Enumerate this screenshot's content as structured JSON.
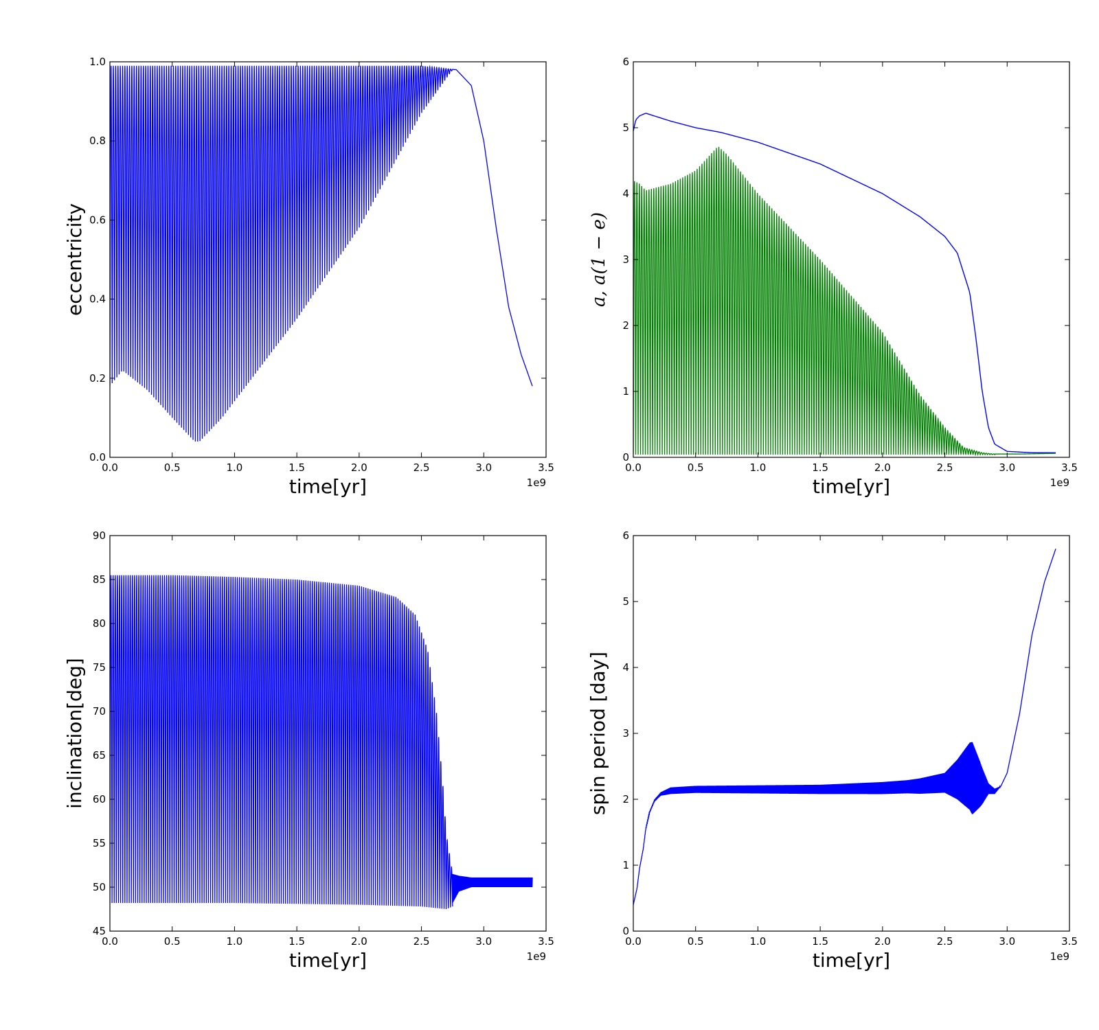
{
  "chart_data": [
    {
      "type": "line",
      "xlabel": "time[yr]",
      "ylabel": "eccentricity",
      "x_offset_label": "1e9",
      "xlim": [
        0.0,
        3.5
      ],
      "ylim": [
        0.0,
        1.0
      ],
      "xticks": [
        "0.0",
        "0.5",
        "1.0",
        "1.5",
        "2.0",
        "2.5",
        "3.0",
        "3.5"
      ],
      "yticks": [
        "0.0",
        "0.2",
        "0.4",
        "0.6",
        "0.8",
        "1.0"
      ],
      "grid": false,
      "series": [
        {
          "color": "#0000ff",
          "style": "oscillating",
          "max_points": [
            [
              0.0,
              0.99
            ],
            [
              2.5,
              0.99
            ],
            [
              2.78,
              0.98
            ],
            [
              2.95,
              0.9
            ],
            [
              3.05,
              0.72
            ],
            [
              3.15,
              0.5
            ],
            [
              3.25,
              0.33
            ],
            [
              3.39,
              0.18
            ]
          ],
          "min_points": [
            [
              0.0,
              0.18
            ],
            [
              0.1,
              0.22
            ],
            [
              0.3,
              0.17
            ],
            [
              0.5,
              0.1
            ],
            [
              0.68,
              0.04
            ],
            [
              0.72,
              0.04
            ],
            [
              0.9,
              0.1
            ],
            [
              1.5,
              0.35
            ],
            [
              2.0,
              0.58
            ],
            [
              2.5,
              0.87
            ],
            [
              2.75,
              0.98
            ]
          ],
          "envelope_end_x": 2.78,
          "oscillations": 150,
          "tail": [
            [
              2.78,
              0.98
            ],
            [
              2.9,
              0.94
            ],
            [
              3.0,
              0.8
            ],
            [
              3.1,
              0.58
            ],
            [
              3.2,
              0.38
            ],
            [
              3.3,
              0.26
            ],
            [
              3.39,
              0.18
            ]
          ]
        }
      ]
    },
    {
      "type": "line",
      "xlabel": "time[yr]",
      "ylabel": "a, a(1 − e)",
      "x_offset_label": "1e9",
      "xlim": [
        0.0,
        3.5
      ],
      "ylim": [
        0,
        6
      ],
      "xticks": [
        "0.0",
        "0.5",
        "1.0",
        "1.5",
        "2.0",
        "2.5",
        "3.0",
        "3.5"
      ],
      "yticks": [
        "0",
        "1",
        "2",
        "3",
        "4",
        "5",
        "6"
      ],
      "grid": false,
      "series": [
        {
          "color": "#0000ff",
          "style": "smooth",
          "points": [
            [
              0.0,
              4.95
            ],
            [
              0.02,
              5.12
            ],
            [
              0.05,
              5.18
            ],
            [
              0.1,
              5.22
            ],
            [
              0.3,
              5.1
            ],
            [
              0.5,
              5.0
            ],
            [
              0.7,
              4.93
            ],
            [
              1.0,
              4.78
            ],
            [
              1.5,
              4.45
            ],
            [
              2.0,
              4.0
            ],
            [
              2.3,
              3.65
            ],
            [
              2.5,
              3.35
            ],
            [
              2.6,
              3.1
            ],
            [
              2.7,
              2.5
            ],
            [
              2.75,
              1.8
            ],
            [
              2.8,
              1.0
            ],
            [
              2.85,
              0.45
            ],
            [
              2.9,
              0.2
            ],
            [
              3.0,
              0.09
            ],
            [
              3.2,
              0.07
            ],
            [
              3.39,
              0.07
            ]
          ]
        },
        {
          "color": "#008000",
          "style": "oscillating",
          "max_points": [
            [
              0.0,
              4.2
            ],
            [
              0.05,
              4.15
            ],
            [
              0.1,
              4.05
            ],
            [
              0.3,
              4.15
            ],
            [
              0.5,
              4.35
            ],
            [
              0.68,
              4.72
            ],
            [
              0.75,
              4.6
            ],
            [
              1.0,
              4.0
            ],
            [
              1.5,
              3.0
            ],
            [
              2.0,
              1.9
            ],
            [
              2.3,
              0.95
            ],
            [
              2.5,
              0.45
            ],
            [
              2.65,
              0.15
            ],
            [
              2.8,
              0.07
            ],
            [
              2.9,
              0.05
            ]
          ],
          "min_points": [
            [
              0.0,
              0.04
            ],
            [
              2.9,
              0.04
            ]
          ],
          "envelope_end_x": 2.9,
          "oscillations": 150,
          "tail": [
            [
              2.9,
              0.05
            ],
            [
              3.1,
              0.05
            ],
            [
              3.39,
              0.06
            ]
          ]
        }
      ]
    },
    {
      "type": "line",
      "xlabel": "time[yr]",
      "ylabel": "inclination[deg]",
      "x_offset_label": "1e9",
      "xlim": [
        0.0,
        3.5
      ],
      "ylim": [
        45,
        90
      ],
      "xticks": [
        "0.0",
        "0.5",
        "1.0",
        "1.5",
        "2.0",
        "2.5",
        "3.0",
        "3.5"
      ],
      "yticks": [
        "45",
        "50",
        "55",
        "60",
        "65",
        "70",
        "75",
        "80",
        "85",
        "90"
      ],
      "grid": false,
      "series": [
        {
          "color": "#0000ff",
          "style": "oscillating",
          "max_points": [
            [
              0.0,
              85.5
            ],
            [
              0.5,
              85.5
            ],
            [
              1.0,
              85.3
            ],
            [
              1.5,
              85.0
            ],
            [
              2.0,
              84.3
            ],
            [
              2.3,
              83.0
            ],
            [
              2.45,
              81.0
            ],
            [
              2.55,
              77.0
            ],
            [
              2.62,
              70.0
            ],
            [
              2.67,
              62.0
            ],
            [
              2.7,
              56.0
            ],
            [
              2.75,
              51.5
            ]
          ],
          "min_points": [
            [
              0.0,
              48.2
            ],
            [
              1.0,
              48.2
            ],
            [
              2.0,
              48.0
            ],
            [
              2.5,
              47.8
            ],
            [
              2.7,
              47.5
            ],
            [
              2.75,
              47.8
            ]
          ],
          "envelope_end_x": 2.75,
          "oscillations": 160,
          "tail_band": [
            [
              2.75,
              51.5,
              48.2
            ],
            [
              2.8,
              51.3,
              49.5
            ],
            [
              2.9,
              51.1,
              50.0
            ],
            [
              3.39,
              51.1,
              50.0
            ]
          ]
        }
      ]
    },
    {
      "type": "line",
      "xlabel": "time[yr]",
      "ylabel": "spin period [day]",
      "x_offset_label": "1e9",
      "xlim": [
        0.0,
        3.5
      ],
      "ylim": [
        0,
        6
      ],
      "xticks": [
        "0.0",
        "0.5",
        "1.0",
        "1.5",
        "2.0",
        "2.5",
        "3.0",
        "3.5"
      ],
      "yticks": [
        "0",
        "1",
        "2",
        "3",
        "4",
        "5",
        "6"
      ],
      "grid": false,
      "series": [
        {
          "color": "#0000ff",
          "style": "band",
          "center_points": [
            [
              0.0,
              0.4
            ],
            [
              0.03,
              0.65
            ],
            [
              0.05,
              0.95
            ],
            [
              0.08,
              1.25
            ],
            [
              0.1,
              1.55
            ],
            [
              0.13,
              1.8
            ],
            [
              0.17,
              1.98
            ],
            [
              0.22,
              2.08
            ],
            [
              0.3,
              2.13
            ],
            [
              0.5,
              2.15
            ],
            [
              1.0,
              2.15
            ],
            [
              1.5,
              2.15
            ],
            [
              2.0,
              2.17
            ],
            [
              2.3,
              2.2
            ],
            [
              2.5,
              2.25
            ],
            [
              2.6,
              2.3
            ],
            [
              2.7,
              2.35
            ],
            [
              2.8,
              2.2
            ],
            [
              2.9,
              2.12
            ],
            [
              2.95,
              2.2
            ],
            [
              3.0,
              2.4
            ],
            [
              3.1,
              3.3
            ],
            [
              3.2,
              4.5
            ],
            [
              3.3,
              5.3
            ],
            [
              3.39,
              5.8
            ]
          ],
          "half_width_points": [
            [
              0.0,
              0.0
            ],
            [
              0.2,
              0.02
            ],
            [
              0.3,
              0.05
            ],
            [
              1.5,
              0.07
            ],
            [
              2.2,
              0.1
            ],
            [
              2.5,
              0.15
            ],
            [
              2.6,
              0.3
            ],
            [
              2.72,
              0.55
            ],
            [
              2.78,
              0.35
            ],
            [
              2.85,
              0.08
            ],
            [
              2.95,
              0.0
            ],
            [
              3.39,
              0.0
            ]
          ]
        }
      ]
    }
  ]
}
